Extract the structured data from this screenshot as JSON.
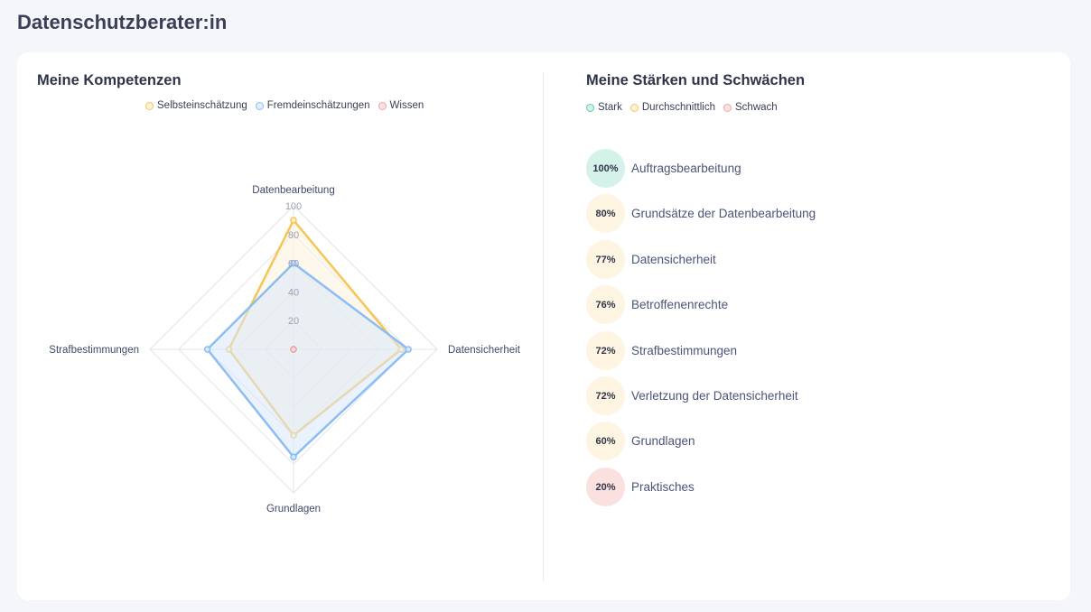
{
  "page": {
    "title": "Datenschutzberater:in"
  },
  "competences": {
    "title": "Meine Kompetenzen",
    "legend": [
      {
        "label": "Selbsteinschätzung",
        "color": "#f5c558",
        "fill": "#fdf3dc"
      },
      {
        "label": "Fremdeinschätzungen",
        "color": "#8cbdf3",
        "fill": "#e1eefc"
      },
      {
        "label": "Wissen",
        "color": "#f2a2a2",
        "fill": "#fbe1e1"
      }
    ]
  },
  "chart_data": {
    "type": "radar",
    "title": "Meine Kompetenzen",
    "axes": [
      "Datenbearbeitung",
      "Datensicherheit",
      "Grundlagen",
      "Strafbestimmungen"
    ],
    "rlim": [
      0,
      100
    ],
    "ticks": [
      "20",
      "40",
      "60",
      "80",
      "100"
    ],
    "grid": true,
    "legend_position": "top",
    "series": [
      {
        "name": "Selbsteinschätzung",
        "values": [
          90,
          75,
          60,
          45
        ],
        "color": "#f5c558",
        "fill": "#fdf3dc"
      },
      {
        "name": "Fremdeinschätzungen",
        "values": [
          60,
          80,
          75,
          60
        ],
        "color": "#8cbdf3",
        "fill": "#d8e8fb"
      },
      {
        "name": "Wissen",
        "values": [
          0,
          0,
          0,
          0
        ],
        "color": "#f2a2a2",
        "fill": "#fbe1e1"
      }
    ]
  },
  "strengths": {
    "title": "Meine Stärken und Schwächen",
    "legend": [
      {
        "label": "Stark",
        "color": "#5ccbb4",
        "fill": "#d4f2ea"
      },
      {
        "label": "Durchschnittlich",
        "color": "#f5c558",
        "fill": "#fdf3dc"
      },
      {
        "label": "Schwach",
        "color": "#f2a2a2",
        "fill": "#fbe1e1"
      }
    ],
    "items": [
      {
        "percent": "100%",
        "label": "Auftragsbearbeitung",
        "color": "#d4f2ea"
      },
      {
        "percent": "80%",
        "label": "Grundsätze der Datenbearbeitung",
        "color": "#fdf4e1"
      },
      {
        "percent": "77%",
        "label": "Datensicherheit",
        "color": "#fdf4e1"
      },
      {
        "percent": "76%",
        "label": "Betroffenenrechte",
        "color": "#fdf4e1"
      },
      {
        "percent": "72%",
        "label": "Strafbestimmungen",
        "color": "#fdf4e1"
      },
      {
        "percent": "72%",
        "label": "Verletzung der Datensicherheit",
        "color": "#fdf4e1"
      },
      {
        "percent": "60%",
        "label": "Grundlagen",
        "color": "#fdf4e1"
      },
      {
        "percent": "20%",
        "label": "Praktisches",
        "color": "#fbe0e0"
      }
    ]
  }
}
